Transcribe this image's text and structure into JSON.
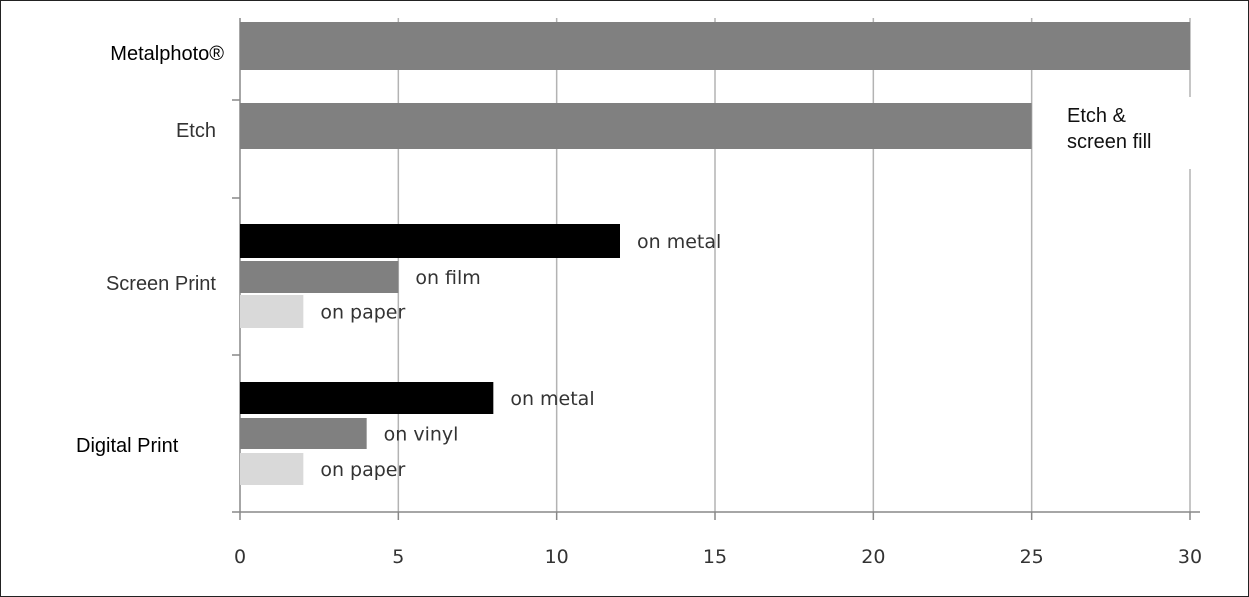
{
  "chart_data": {
    "type": "bar",
    "orientation": "horizontal",
    "title": "",
    "xlabel": "",
    "ylabel": "",
    "xlim": [
      0,
      30
    ],
    "x_ticks": [
      "0",
      "5",
      "10",
      "15",
      "20",
      "25",
      "30"
    ],
    "grid": "vertical",
    "colors": {
      "black": "#000000",
      "dark_gray": "#808080",
      "light_gray": "#d9d9d9"
    },
    "categories": [
      {
        "label": "Metalphoto®",
        "bars": [
          {
            "value": 30,
            "color": "dark_gray",
            "label": ""
          }
        ]
      },
      {
        "label": "Etch",
        "bars": [
          {
            "value": 25,
            "color": "dark_gray",
            "label": ""
          }
        ]
      },
      {
        "label": "Screen Print",
        "bars": [
          {
            "value": 12,
            "color": "black",
            "label": "on metal"
          },
          {
            "value": 5,
            "color": "dark_gray",
            "label": "on film"
          },
          {
            "value": 2,
            "color": "light_gray",
            "label": "on paper"
          }
        ]
      },
      {
        "label": "Digital Print",
        "bars": [
          {
            "value": 8,
            "color": "black",
            "label": "on metal"
          },
          {
            "value": 4,
            "color": "dark_gray",
            "label": "on vinyl"
          },
          {
            "value": 2,
            "color": "light_gray",
            "label": "on paper"
          }
        ]
      }
    ],
    "callout": {
      "line1": "Etch &",
      "line2": "screen fill"
    }
  }
}
